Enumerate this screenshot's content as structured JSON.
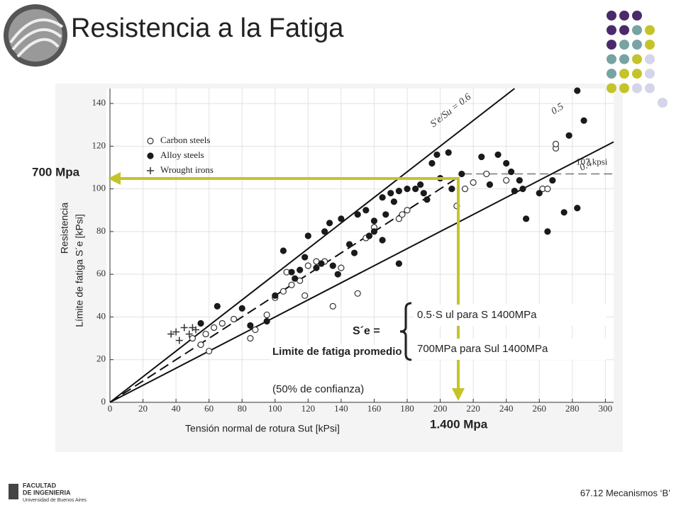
{
  "header": {
    "title": "Resistencia a la Fatiga"
  },
  "footer": {
    "course": "67.12 Mecanismos ‘B’",
    "logo_line1": "FACULTAD",
    "logo_line2": "DE INGENIERIA",
    "logo_line3": "Universidad de Buenos Aires"
  },
  "annotations": {
    "se_mpa": "700 Mpa",
    "sut_mpa": "1.400 Mpa",
    "se_equals": "S´e =",
    "option1": "0.5·S ul para S 1400MPa",
    "option2": "700MPa para Sul 1400MPa",
    "avg_bold": "Limite de fatiga promedio",
    "avg_rest": "(50% de confianza)"
  },
  "chart_data": {
    "type": "scatter",
    "x_label": "Tensión normal de rotura Sut [kPsi]",
    "y_label_1": "Resistencia",
    "y_label_2": "Límite de fatiga S´e [kPsi]",
    "xlim": [
      0,
      305
    ],
    "ylim": [
      0,
      147
    ],
    "xticks": [
      0,
      20,
      40,
      60,
      80,
      100,
      120,
      140,
      160,
      180,
      200,
      220,
      240,
      260,
      280,
      300
    ],
    "yticks": [
      0,
      20,
      40,
      60,
      80,
      100,
      120,
      140
    ],
    "grid": true,
    "series": [
      {
        "name": "Carbon steels",
        "marker": "open-circle",
        "color": "#333333",
        "x": [
          50,
          55,
          58,
          60,
          63,
          68,
          75,
          85,
          88,
          95,
          100,
          105,
          107,
          110,
          115,
          118,
          120,
          125,
          130,
          135,
          140,
          150,
          155,
          160,
          175,
          177,
          180,
          210,
          215,
          220,
          228,
          240,
          262,
          265,
          270,
          270
        ],
        "values": [
          30,
          27,
          32,
          24,
          35,
          37,
          39,
          30,
          34,
          41,
          49,
          52,
          61,
          55,
          57,
          50,
          64,
          66,
          66,
          45,
          63,
          51,
          77,
          82,
          86,
          88,
          90,
          92,
          100,
          103,
          107,
          104,
          100,
          100,
          119,
          121
        ]
      },
      {
        "name": "Alloy steels",
        "marker": "filled-circle",
        "color": "#1a1a1a",
        "x": [
          55,
          65,
          80,
          85,
          95,
          100,
          105,
          110,
          112,
          115,
          118,
          120,
          125,
          128,
          130,
          133,
          135,
          138,
          140,
          145,
          148,
          150,
          155,
          157,
          160,
          160,
          165,
          165,
          167,
          170,
          172,
          175,
          175,
          180,
          185,
          188,
          190,
          192,
          195,
          198,
          200,
          205,
          207,
          213,
          225,
          230,
          235,
          240,
          243,
          245,
          248,
          250,
          252,
          260,
          265,
          268,
          275,
          278,
          283,
          283,
          287
        ],
        "values": [
          37,
          45,
          44,
          36,
          38,
          50,
          71,
          61,
          58,
          62,
          68,
          78,
          63,
          65,
          80,
          84,
          64,
          60,
          86,
          74,
          70,
          88,
          90,
          78,
          85,
          80,
          76,
          96,
          88,
          98,
          94,
          99,
          65,
          100,
          100,
          102,
          98,
          95,
          112,
          116,
          105,
          117,
          100,
          107,
          115,
          102,
          116,
          112,
          108,
          99,
          104,
          100,
          86,
          98,
          80,
          104,
          89,
          125,
          91,
          146,
          132
        ]
      },
      {
        "name": "Wrought irons",
        "marker": "plus",
        "color": "#333333",
        "x": [
          37,
          40,
          42,
          45,
          48,
          50,
          52
        ],
        "values": [
          32,
          33,
          29,
          35,
          32,
          35,
          34
        ]
      }
    ],
    "lines": [
      {
        "label": "S′e/Su = 0.6",
        "ratio": 0.6,
        "style": "solid"
      },
      {
        "label": "0.5",
        "ratio": 0.5,
        "style": "dashed"
      },
      {
        "label": "0.4",
        "ratio": 0.4,
        "style": "solid"
      }
    ],
    "plateau": {
      "label": "107 kpsi",
      "value": 107
    }
  }
}
